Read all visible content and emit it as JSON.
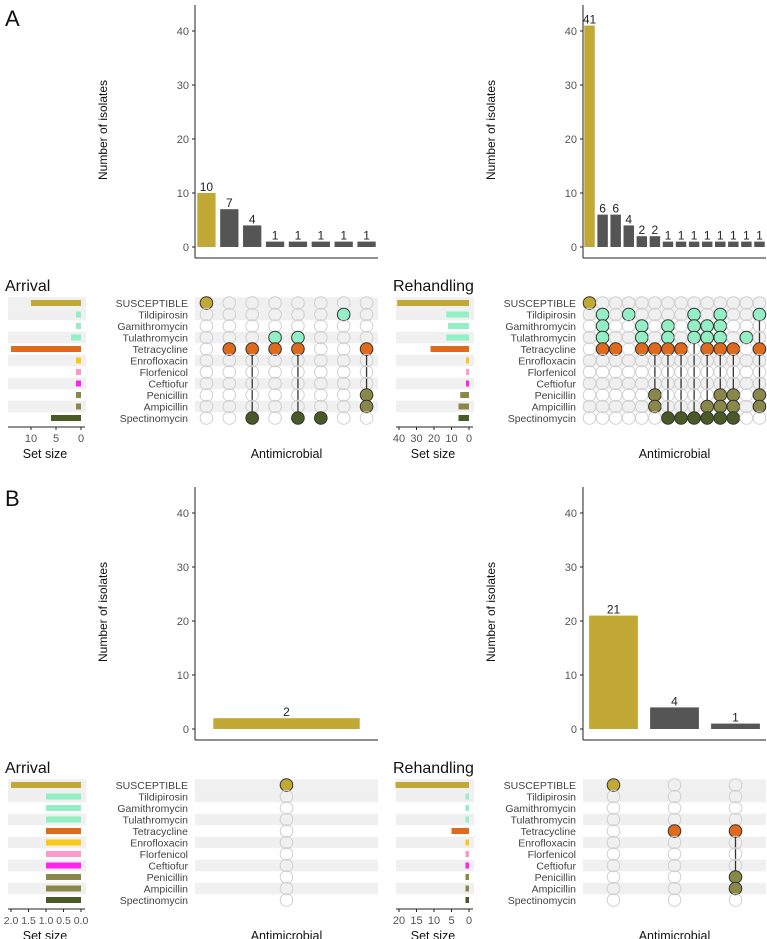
{
  "panel_labels": [
    "A",
    "B"
  ],
  "sets": [
    "SUSCEPTIBLE",
    "Tildipirosin",
    "Gamithromycin",
    "Tulathromycin",
    "Tetracycline",
    "Enrofloxacin",
    "Florfenicol",
    "Ceftiofur",
    "Penicillin",
    "Ampicillin",
    "Spectinomycin"
  ],
  "colors": {
    "SUSCEPTIBLE": "#c2a834",
    "Tildipirosin": "#92f0c4",
    "Gamithromycin": "#92f0c4",
    "Tulathromycin": "#92f0c4",
    "Tetracycline": "#e06a1c",
    "Enrofloxacin": "#f8c81c",
    "Florfenicol": "#ff98cc",
    "Ceftiofur": "#ff22f0",
    "Penicillin": "#8a8848",
    "Ampicillin": "#8a8848",
    "Spectinomycin": "#4a5a26",
    "other_bar": "#555555",
    "empty_dot": "#d0d0d0",
    "stripe": "#f0f0f0"
  },
  "chart_data": [
    {
      "type": "upset",
      "panel": "A",
      "title": "Arrival",
      "ylabel": "Number of isolates",
      "xlabel": "Antimicrobial",
      "set_size_label": "Set size",
      "ylim": [
        0,
        44
      ],
      "y_ticks": [
        "0",
        "10",
        "20",
        "30",
        "40"
      ],
      "set_size_xlim": [
        0,
        14
      ],
      "set_size_ticks": [
        "10",
        "5",
        "0"
      ],
      "set_sizes": [
        10,
        1,
        1,
        2,
        14,
        1,
        1,
        1,
        1,
        1,
        6
      ],
      "intersections": [
        {
          "count": 10,
          "members": [
            "SUSCEPTIBLE"
          ]
        },
        {
          "count": 7,
          "members": [
            "Tetracycline"
          ]
        },
        {
          "count": 4,
          "members": [
            "Tetracycline",
            "Spectinomycin"
          ]
        },
        {
          "count": 1,
          "members": [
            "Tulathromycin",
            "Tetracycline"
          ]
        },
        {
          "count": 1,
          "members": [
            "Tulathromycin",
            "Tetracycline",
            "Spectinomycin"
          ]
        },
        {
          "count": 1,
          "members": [
            "Spectinomycin"
          ]
        },
        {
          "count": 1,
          "members": [
            "Tildipirosin"
          ]
        },
        {
          "count": 1,
          "members": [
            "Tetracycline",
            "Penicillin",
            "Ampicillin"
          ]
        }
      ]
    },
    {
      "type": "upset",
      "panel": "A",
      "title": "Rehandling",
      "ylabel": "Number of isolates",
      "xlabel": "Antimicrobial",
      "set_size_label": "Set size",
      "ylim": [
        0,
        44
      ],
      "y_ticks": [
        "0",
        "10",
        "20",
        "30",
        "40"
      ],
      "set_size_xlim": [
        0,
        40
      ],
      "set_size_ticks": [
        "40",
        "30",
        "20",
        "10",
        "0"
      ],
      "set_sizes": [
        41,
        13,
        12,
        13,
        22,
        1,
        1,
        1,
        5,
        6,
        6
      ],
      "intersections": [
        {
          "count": 41,
          "members": [
            "SUSCEPTIBLE"
          ]
        },
        {
          "count": 6,
          "members": [
            "Tildipirosin",
            "Gamithromycin",
            "Tulathromycin",
            "Tetracycline"
          ]
        },
        {
          "count": 6,
          "members": [
            "Tetracycline"
          ]
        },
        {
          "count": 4,
          "members": [
            "Tildipirosin"
          ]
        },
        {
          "count": 2,
          "members": [
            "Gamithromycin",
            "Tulathromycin",
            "Tetracycline"
          ]
        },
        {
          "count": 2,
          "members": [
            "Tetracycline",
            "Penicillin",
            "Ampicillin"
          ]
        },
        {
          "count": 1,
          "members": [
            "Gamithromycin",
            "Tulathromycin",
            "Tetracycline",
            "Spectinomycin"
          ]
        },
        {
          "count": 1,
          "members": [
            "Tetracycline",
            "Spectinomycin"
          ]
        },
        {
          "count": 1,
          "members": [
            "Tildipirosin",
            "Gamithromycin",
            "Tulathromycin",
            "Spectinomycin"
          ]
        },
        {
          "count": 1,
          "members": [
            "Gamithromycin",
            "Tulathromycin",
            "Tetracycline",
            "Ampicillin",
            "Spectinomycin"
          ]
        },
        {
          "count": 1,
          "members": [
            "Tildipirosin",
            "Gamithromycin",
            "Tulathromycin",
            "Tetracycline",
            "Penicillin",
            "Ampicillin",
            "Spectinomycin"
          ]
        },
        {
          "count": 1,
          "members": [
            "Tetracycline",
            "Penicillin",
            "Ampicillin",
            "Spectinomycin"
          ]
        },
        {
          "count": 1,
          "members": [
            "Tulathromycin"
          ]
        },
        {
          "count": 1,
          "members": [
            "Tildipirosin",
            "Tetracycline",
            "Penicillin",
            "Ampicillin"
          ]
        }
      ]
    },
    {
      "type": "upset",
      "panel": "B",
      "title": "Arrival",
      "ylabel": "Number of isolates",
      "xlabel": "Antimicrobial",
      "set_size_label": "Set size",
      "ylim": [
        0,
        44
      ],
      "y_ticks": [
        "0",
        "10",
        "20",
        "30",
        "40"
      ],
      "set_size_xlim": [
        0,
        2
      ],
      "set_size_ticks": [
        "2.0",
        "1.5",
        "1.0",
        "0.5",
        "0.0"
      ],
      "set_sizes": [
        2,
        1,
        1,
        1,
        1,
        1,
        1,
        1,
        1,
        1,
        1
      ],
      "intersections": [
        {
          "count": 2,
          "members": [
            "SUSCEPTIBLE"
          ]
        }
      ]
    },
    {
      "type": "upset",
      "panel": "B",
      "title": "Rehandling",
      "ylabel": "Number of isolates",
      "xlabel": "Antimicrobial",
      "set_size_label": "Set size",
      "ylim": [
        0,
        44
      ],
      "y_ticks": [
        "0",
        "10",
        "20",
        "30",
        "40"
      ],
      "set_size_xlim": [
        0,
        20
      ],
      "set_size_ticks": [
        "20",
        "15",
        "10",
        "5",
        "0"
      ],
      "set_sizes": [
        21,
        1,
        1,
        1,
        5,
        1,
        1,
        1,
        1,
        1,
        1
      ],
      "intersections": [
        {
          "count": 21,
          "members": [
            "SUSCEPTIBLE"
          ]
        },
        {
          "count": 4,
          "members": [
            "Tetracycline"
          ]
        },
        {
          "count": 1,
          "members": [
            "Tetracycline",
            "Penicillin",
            "Ampicillin"
          ]
        }
      ]
    }
  ]
}
